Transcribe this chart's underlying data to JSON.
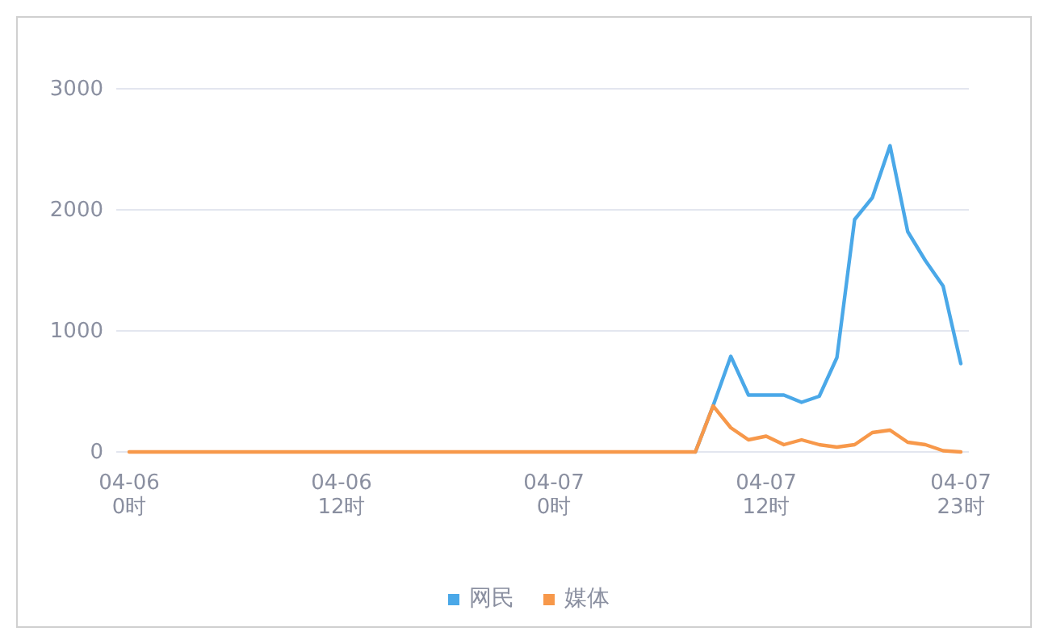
{
  "chart_data": {
    "type": "line",
    "categories": [
      "04-06\n0时",
      null,
      null,
      null,
      null,
      null,
      null,
      null,
      null,
      null,
      null,
      null,
      "04-06\n12时",
      null,
      null,
      null,
      null,
      null,
      null,
      null,
      null,
      null,
      null,
      null,
      "04-07\n0时",
      null,
      null,
      null,
      null,
      null,
      null,
      null,
      null,
      null,
      null,
      null,
      "04-07\n12时",
      null,
      null,
      null,
      null,
      null,
      null,
      null,
      null,
      null,
      null,
      "04-07\n23时"
    ],
    "series": [
      {
        "name": "网民",
        "color": "#4aa8e8",
        "values": [
          null,
          null,
          null,
          null,
          null,
          null,
          null,
          null,
          null,
          null,
          null,
          null,
          null,
          null,
          null,
          null,
          null,
          null,
          null,
          null,
          null,
          null,
          null,
          null,
          null,
          null,
          null,
          null,
          null,
          null,
          null,
          null,
          0,
          380,
          790,
          470,
          470,
          470,
          410,
          460,
          780,
          1920,
          2100,
          2530,
          1820,
          1580,
          1370,
          730
        ]
      },
      {
        "name": "媒体",
        "color": "#f7984a",
        "values": [
          0,
          0,
          0,
          0,
          0,
          0,
          0,
          0,
          0,
          0,
          0,
          0,
          0,
          0,
          0,
          0,
          0,
          0,
          0,
          0,
          0,
          0,
          0,
          0,
          0,
          0,
          0,
          0,
          0,
          0,
          0,
          0,
          0,
          380,
          200,
          100,
          130,
          60,
          100,
          60,
          40,
          60,
          160,
          180,
          80,
          60,
          10,
          0
        ]
      }
    ],
    "ylim": [
      0,
      3000
    ],
    "yticks": [
      0,
      1000,
      2000,
      3000
    ],
    "grid": "y",
    "legend": "bottom",
    "marker": "none",
    "line_style": "solid"
  }
}
